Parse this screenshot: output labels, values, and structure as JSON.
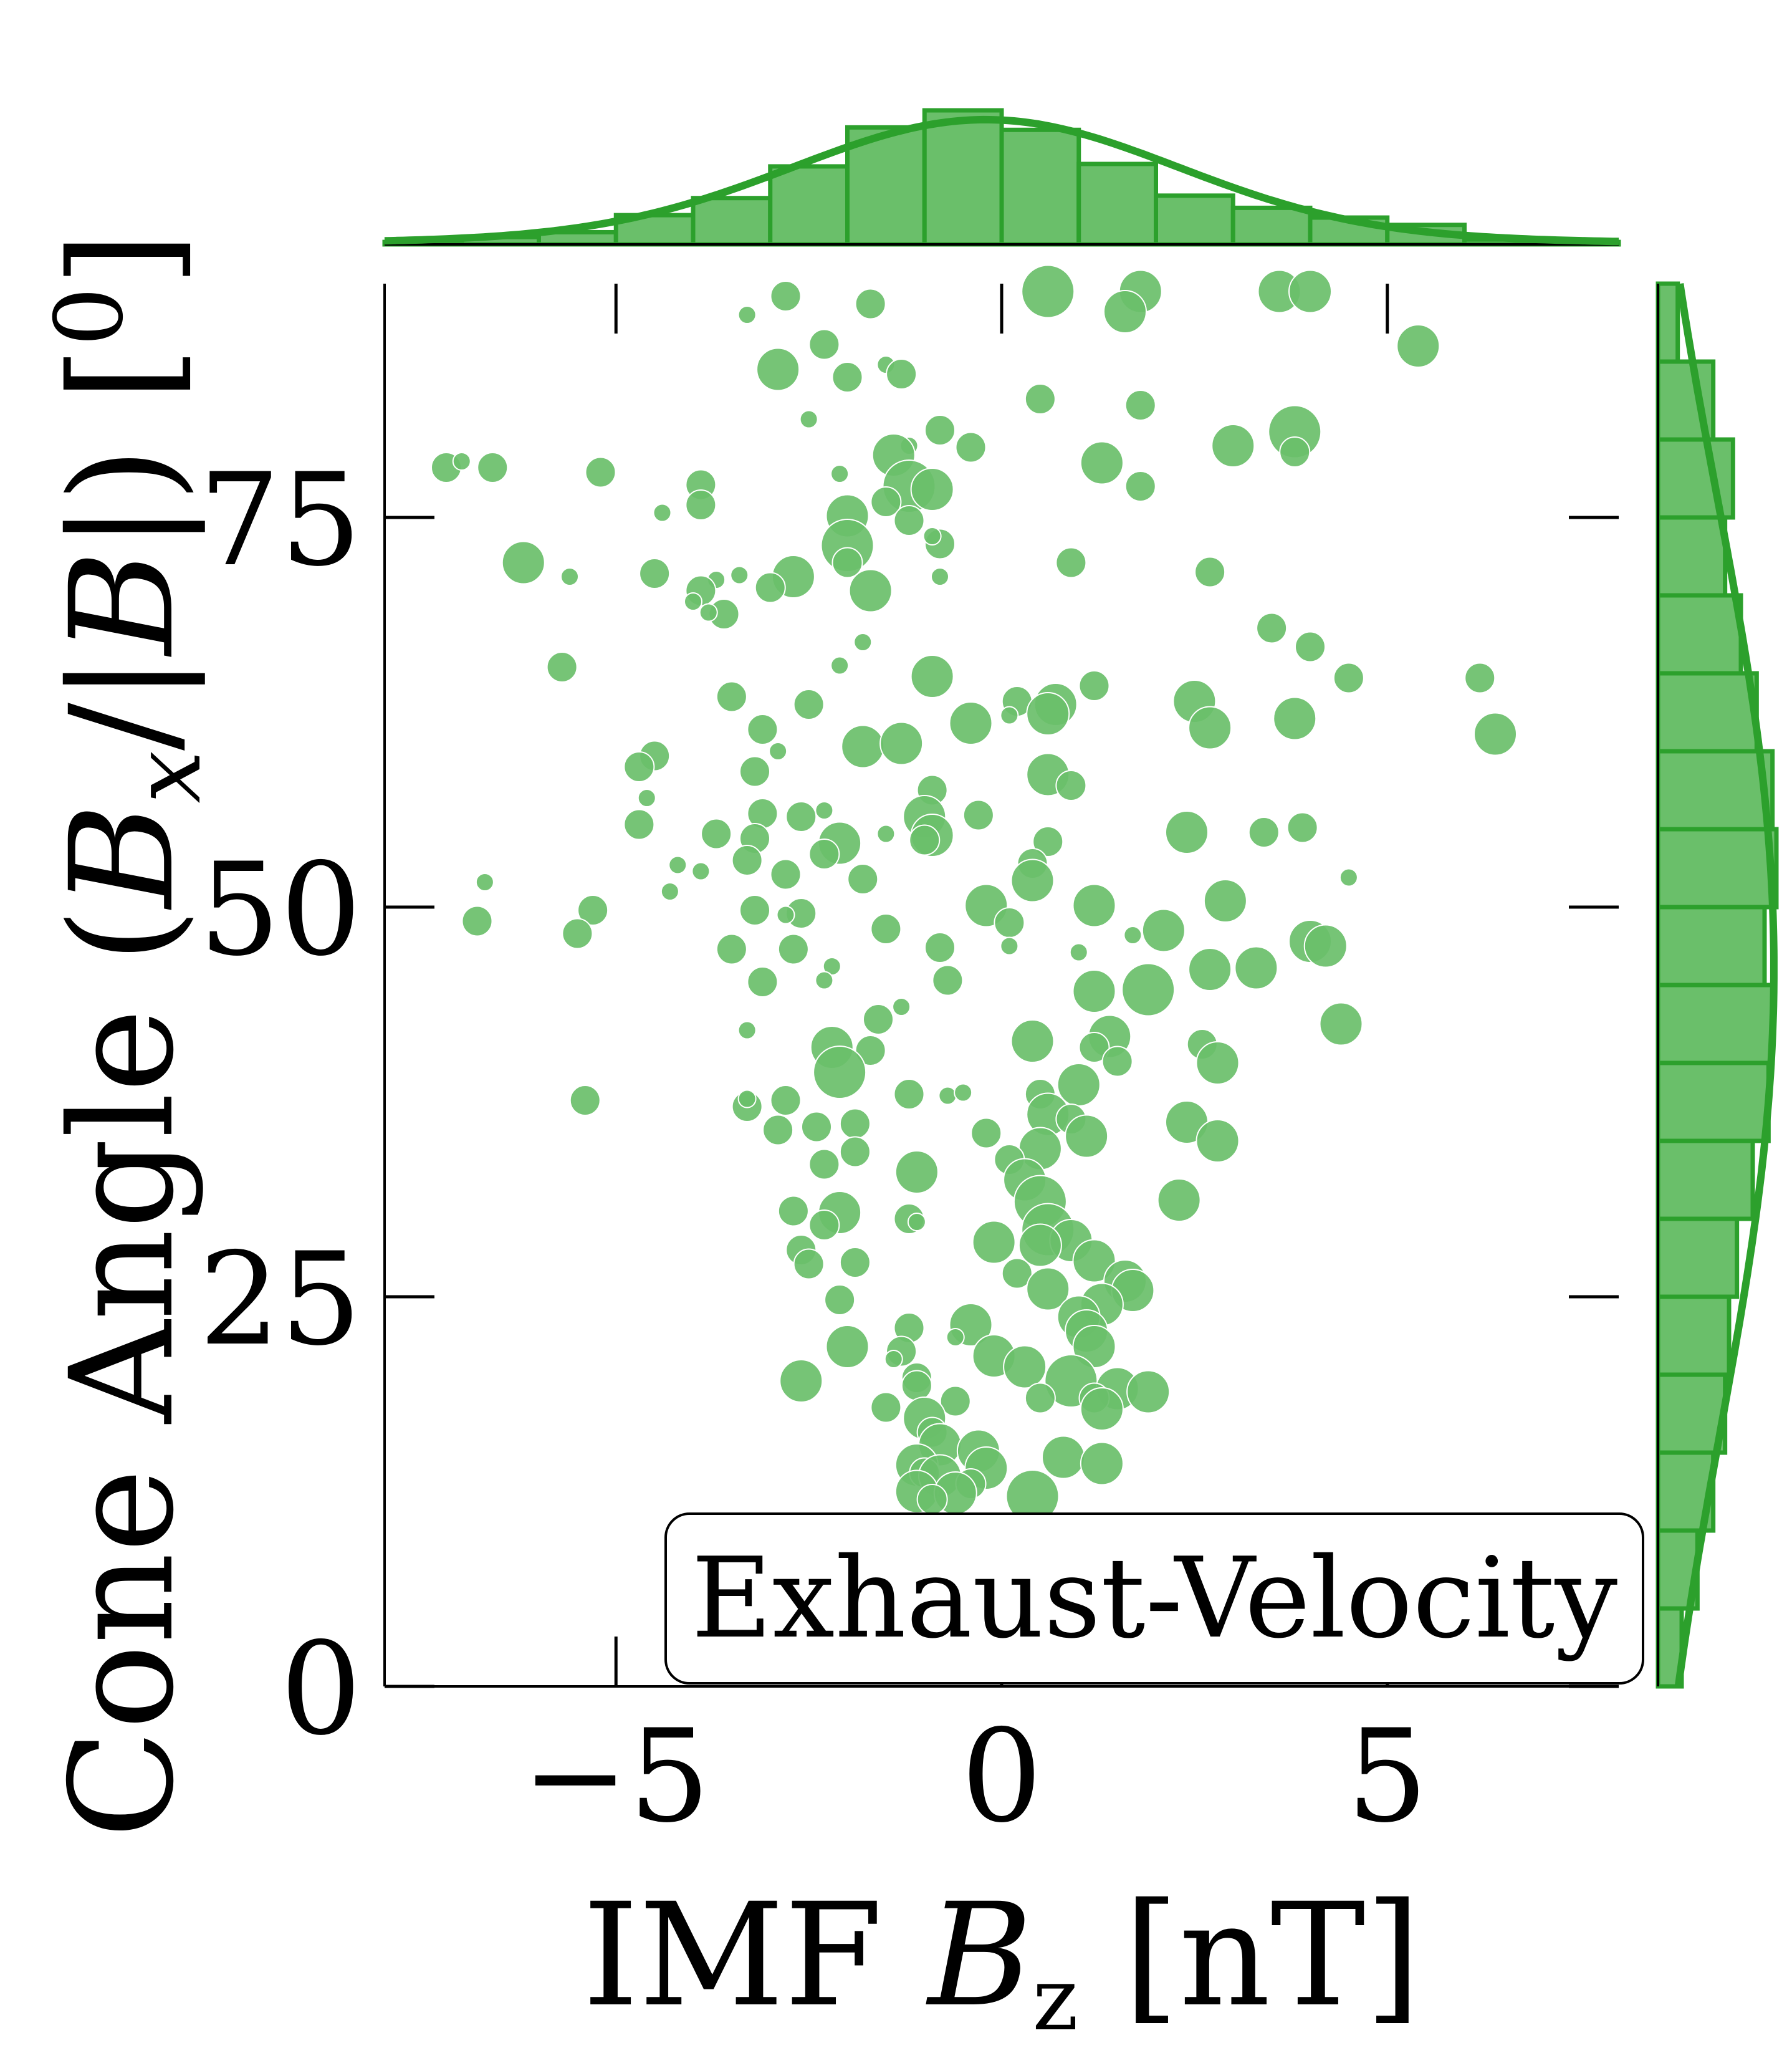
{
  "chart_data": {
    "type": "scatter",
    "series_color": "#2ca02c",
    "marker_fill": "#6abf6a",
    "xlabel": "IMF B_z [nT]",
    "ylabel": "Cone Angle (B_x/|B|) [°]",
    "xlabel_parts": {
      "main": "IMF ",
      "symbol": "B",
      "sub": "z",
      "unit": " [nT]"
    },
    "ylabel_parts": {
      "main": "Cone Angle (",
      "symbol": "B",
      "sub": "x",
      "middle": "/|",
      "symbol2": "B",
      "end": "|) [",
      "degree": "0",
      "close": "]"
    },
    "xlim": [
      -8,
      8
    ],
    "ylim": [
      0,
      90
    ],
    "x_ticks": [
      -5,
      0,
      5
    ],
    "x_tick_labels": [
      "−5",
      "0",
      "5"
    ],
    "y_ticks": [
      0,
      25,
      50,
      75
    ],
    "y_tick_labels": [
      "0",
      "25",
      "50",
      "75"
    ],
    "legend": {
      "text": "Exhaust-Velocity",
      "placement": "lower-right"
    },
    "points": [
      {
        "x": 0.6,
        "y": 89.5,
        "s": 3
      },
      {
        "x": 1.8,
        "y": 89.5,
        "s": 2
      },
      {
        "x": 3.6,
        "y": 89.5,
        "s": 2
      },
      {
        "x": 4.0,
        "y": 89.5,
        "s": 2
      },
      {
        "x": -2.8,
        "y": 89.2,
        "s": 1
      },
      {
        "x": -1.7,
        "y": 88.7,
        "s": 1
      },
      {
        "x": 1.6,
        "y": 88.2,
        "s": 2
      },
      {
        "x": -3.3,
        "y": 88.0,
        "s": 0
      },
      {
        "x": 5.4,
        "y": 86.0,
        "s": 2
      },
      {
        "x": -2.3,
        "y": 86.1,
        "s": 1
      },
      {
        "x": -2.9,
        "y": 84.5,
        "s": 2
      },
      {
        "x": -2.0,
        "y": 84.0,
        "s": 1
      },
      {
        "x": -1.5,
        "y": 84.8,
        "s": 0
      },
      {
        "x": -1.3,
        "y": 84.2,
        "s": 1
      },
      {
        "x": 0.5,
        "y": 82.6,
        "s": 1
      },
      {
        "x": 1.8,
        "y": 82.2,
        "s": 1
      },
      {
        "x": -2.5,
        "y": 81.3,
        "s": 0
      },
      {
        "x": -1.2,
        "y": 79.6,
        "s": 0
      },
      {
        "x": -0.8,
        "y": 80.6,
        "s": 1
      },
      {
        "x": 3.8,
        "y": 80.5,
        "s": 3
      },
      {
        "x": 3.0,
        "y": 79.6,
        "s": 2
      },
      {
        "x": -0.4,
        "y": 79.5,
        "s": 1
      },
      {
        "x": -1.4,
        "y": 79.0,
        "s": 2
      },
      {
        "x": 3.8,
        "y": 79.2,
        "s": 1
      },
      {
        "x": -7.2,
        "y": 78.2,
        "s": 1
      },
      {
        "x": -6.6,
        "y": 78.2,
        "s": 1
      },
      {
        "x": 1.3,
        "y": 78.5,
        "s": 2
      },
      {
        "x": -7.0,
        "y": 78.6,
        "s": 0
      },
      {
        "x": -5.2,
        "y": 77.9,
        "s": 1
      },
      {
        "x": -2.1,
        "y": 77.8,
        "s": 0
      },
      {
        "x": -3.9,
        "y": 77.1,
        "s": 1
      },
      {
        "x": -1.2,
        "y": 77.0,
        "s": 3
      },
      {
        "x": -0.9,
        "y": 76.8,
        "s": 2
      },
      {
        "x": -1.5,
        "y": 76.0,
        "s": 1
      },
      {
        "x": 1.8,
        "y": 77.0,
        "s": 1
      },
      {
        "x": -3.9,
        "y": 75.8,
        "s": 1
      },
      {
        "x": -4.4,
        "y": 75.3,
        "s": 0
      },
      {
        "x": -2.0,
        "y": 75.1,
        "s": 2
      },
      {
        "x": -1.2,
        "y": 74.8,
        "s": 1
      },
      {
        "x": -2.0,
        "y": 73.2,
        "s": 3
      },
      {
        "x": -0.8,
        "y": 73.3,
        "s": 1
      },
      {
        "x": -0.9,
        "y": 73.8,
        "s": 0
      },
      {
        "x": -6.2,
        "y": 72.1,
        "s": 2
      },
      {
        "x": 0.9,
        "y": 72.1,
        "s": 1
      },
      {
        "x": -2.0,
        "y": 72.1,
        "s": 1
      },
      {
        "x": -4.5,
        "y": 71.4,
        "s": 1
      },
      {
        "x": -5.6,
        "y": 71.2,
        "s": 0
      },
      {
        "x": -0.8,
        "y": 71.2,
        "s": 0
      },
      {
        "x": -3.7,
        "y": 71.0,
        "s": 0
      },
      {
        "x": -3.4,
        "y": 71.3,
        "s": 0
      },
      {
        "x": -2.7,
        "y": 71.2,
        "s": 2
      },
      {
        "x": 2.7,
        "y": 71.5,
        "s": 1
      },
      {
        "x": -3.9,
        "y": 70.3,
        "s": 1
      },
      {
        "x": -3.0,
        "y": 70.5,
        "s": 1
      },
      {
        "x": -1.7,
        "y": 70.3,
        "s": 2
      },
      {
        "x": -4.0,
        "y": 69.6,
        "s": 0
      },
      {
        "x": -3.6,
        "y": 68.8,
        "s": 1
      },
      {
        "x": -3.8,
        "y": 68.9,
        "s": 0
      },
      {
        "x": 3.5,
        "y": 67.9,
        "s": 1
      },
      {
        "x": 4.0,
        "y": 66.7,
        "s": 1
      },
      {
        "x": -1.8,
        "y": 67.0,
        "s": 0
      },
      {
        "x": -2.1,
        "y": 65.5,
        "s": 0
      },
      {
        "x": -5.7,
        "y": 65.4,
        "s": 1
      },
      {
        "x": -0.9,
        "y": 64.8,
        "s": 2
      },
      {
        "x": 4.5,
        "y": 64.7,
        "s": 1
      },
      {
        "x": 6.2,
        "y": 64.7,
        "s": 1
      },
      {
        "x": 1.2,
        "y": 64.2,
        "s": 1
      },
      {
        "x": -3.5,
        "y": 63.5,
        "s": 1
      },
      {
        "x": -2.5,
        "y": 63.0,
        "s": 1
      },
      {
        "x": 0.2,
        "y": 63.2,
        "s": 1
      },
      {
        "x": 0.7,
        "y": 63.0,
        "s": 2
      },
      {
        "x": 2.5,
        "y": 63.2,
        "s": 2
      },
      {
        "x": 0.6,
        "y": 62.4,
        "s": 2
      },
      {
        "x": 2.7,
        "y": 61.5,
        "s": 2
      },
      {
        "x": 3.8,
        "y": 62.1,
        "s": 2
      },
      {
        "x": -0.4,
        "y": 61.8,
        "s": 2
      },
      {
        "x": 0.1,
        "y": 62.3,
        "s": 0
      },
      {
        "x": -3.1,
        "y": 61.4,
        "s": 1
      },
      {
        "x": -2.9,
        "y": 60.0,
        "s": 0
      },
      {
        "x": -1.8,
        "y": 60.3,
        "s": 2
      },
      {
        "x": -1.3,
        "y": 60.5,
        "s": 2
      },
      {
        "x": 6.4,
        "y": 61.1,
        "s": 2
      },
      {
        "x": -4.5,
        "y": 59.7,
        "s": 1
      },
      {
        "x": -3.2,
        "y": 58.7,
        "s": 1
      },
      {
        "x": -4.7,
        "y": 59.0,
        "s": 1
      },
      {
        "x": 0.6,
        "y": 58.5,
        "s": 2
      },
      {
        "x": 0.9,
        "y": 57.8,
        "s": 1
      },
      {
        "x": -0.9,
        "y": 57.5,
        "s": 1
      },
      {
        "x": -4.6,
        "y": 57.0,
        "s": 0
      },
      {
        "x": -3.1,
        "y": 56.0,
        "s": 1
      },
      {
        "x": -2.6,
        "y": 55.8,
        "s": 1
      },
      {
        "x": -2.3,
        "y": 56.2,
        "s": 0
      },
      {
        "x": -1.0,
        "y": 55.8,
        "s": 2
      },
      {
        "x": -0.3,
        "y": 55.9,
        "s": 1
      },
      {
        "x": -4.7,
        "y": 55.3,
        "s": 1
      },
      {
        "x": -0.9,
        "y": 54.6,
        "s": 2
      },
      {
        "x": -1.0,
        "y": 54.3,
        "s": 1
      },
      {
        "x": -3.2,
        "y": 54.4,
        "s": 1
      },
      {
        "x": -2.1,
        "y": 54.1,
        "s": 2
      },
      {
        "x": -1.5,
        "y": 54.7,
        "s": 0
      },
      {
        "x": -3.7,
        "y": 54.7,
        "s": 1
      },
      {
        "x": 0.6,
        "y": 54.2,
        "s": 1
      },
      {
        "x": 2.4,
        "y": 54.8,
        "s": 2
      },
      {
        "x": 3.4,
        "y": 54.8,
        "s": 1
      },
      {
        "x": 3.9,
        "y": 55.1,
        "s": 1
      },
      {
        "x": -2.3,
        "y": 53.4,
        "s": 1
      },
      {
        "x": -3.3,
        "y": 53.0,
        "s": 1
      },
      {
        "x": 0.4,
        "y": 52.8,
        "s": 1
      },
      {
        "x": -4.2,
        "y": 52.7,
        "s": 0
      },
      {
        "x": -3.9,
        "y": 52.3,
        "s": 0
      },
      {
        "x": -2.8,
        "y": 52.1,
        "s": 1
      },
      {
        "x": -1.8,
        "y": 51.8,
        "s": 1
      },
      {
        "x": 0.4,
        "y": 51.7,
        "s": 2
      },
      {
        "x": -6.7,
        "y": 51.6,
        "s": 0
      },
      {
        "x": 4.5,
        "y": 51.9,
        "s": 0
      },
      {
        "x": -4.3,
        "y": 51.0,
        "s": 0
      },
      {
        "x": 2.9,
        "y": 50.4,
        "s": 2
      },
      {
        "x": -0.2,
        "y": 50.1,
        "s": 2
      },
      {
        "x": 1.2,
        "y": 50.1,
        "s": 2
      },
      {
        "x": -5.3,
        "y": 49.8,
        "s": 1
      },
      {
        "x": -3.2,
        "y": 49.8,
        "s": 1
      },
      {
        "x": -2.6,
        "y": 49.6,
        "s": 1
      },
      {
        "x": -2.8,
        "y": 49.5,
        "s": 0
      },
      {
        "x": 0.1,
        "y": 49.0,
        "s": 1
      },
      {
        "x": -1.5,
        "y": 48.6,
        "s": 1
      },
      {
        "x": 2.1,
        "y": 48.5,
        "s": 2
      },
      {
        "x": -6.8,
        "y": 49.1,
        "s": 1
      },
      {
        "x": -5.5,
        "y": 48.3,
        "s": 1
      },
      {
        "x": 1.7,
        "y": 48.2,
        "s": 0
      },
      {
        "x": 4.0,
        "y": 47.8,
        "s": 2
      },
      {
        "x": -2.7,
        "y": 47.3,
        "s": 1
      },
      {
        "x": -3.5,
        "y": 47.3,
        "s": 1
      },
      {
        "x": -0.8,
        "y": 47.4,
        "s": 1
      },
      {
        "x": 0.1,
        "y": 47.5,
        "s": 0
      },
      {
        "x": 1.0,
        "y": 47.1,
        "s": 0
      },
      {
        "x": 4.2,
        "y": 47.5,
        "s": 2
      },
      {
        "x": 2.7,
        "y": 46.0,
        "s": 2
      },
      {
        "x": 3.3,
        "y": 46.1,
        "s": 2
      },
      {
        "x": -2.2,
        "y": 46.2,
        "s": 0
      },
      {
        "x": -3.1,
        "y": 45.2,
        "s": 1
      },
      {
        "x": -2.3,
        "y": 45.3,
        "s": 0
      },
      {
        "x": -0.7,
        "y": 45.3,
        "s": 1
      },
      {
        "x": 1.2,
        "y": 44.6,
        "s": 2
      },
      {
        "x": 1.9,
        "y": 44.7,
        "s": 3
      },
      {
        "x": -1.3,
        "y": 43.6,
        "s": 0
      },
      {
        "x": 4.4,
        "y": 42.5,
        "s": 2
      },
      {
        "x": -1.6,
        "y": 42.8,
        "s": 1
      },
      {
        "x": -3.3,
        "y": 42.1,
        "s": 0
      },
      {
        "x": 0.4,
        "y": 41.4,
        "s": 2
      },
      {
        "x": 1.4,
        "y": 41.7,
        "s": 2
      },
      {
        "x": 1.2,
        "y": 41.0,
        "s": 1
      },
      {
        "x": 2.6,
        "y": 41.2,
        "s": 1
      },
      {
        "x": -2.2,
        "y": 41.0,
        "s": 2
      },
      {
        "x": -1.7,
        "y": 40.8,
        "s": 1
      },
      {
        "x": 2.8,
        "y": 40.0,
        "s": 2
      },
      {
        "x": -2.1,
        "y": 39.4,
        "s": 3
      },
      {
        "x": 1.5,
        "y": 40.1,
        "s": 1
      },
      {
        "x": 1.0,
        "y": 38.6,
        "s": 2
      },
      {
        "x": 0.5,
        "y": 38.0,
        "s": 1
      },
      {
        "x": -1.2,
        "y": 38.0,
        "s": 1
      },
      {
        "x": -0.7,
        "y": 37.9,
        "s": 0
      },
      {
        "x": -0.5,
        "y": 38.1,
        "s": 0
      },
      {
        "x": -5.4,
        "y": 37.6,
        "s": 1
      },
      {
        "x": -3.3,
        "y": 37.2,
        "s": 1
      },
      {
        "x": -2.8,
        "y": 37.6,
        "s": 1
      },
      {
        "x": -3.3,
        "y": 37.7,
        "s": 0
      },
      {
        "x": -1.9,
        "y": 36.1,
        "s": 1
      },
      {
        "x": 0.6,
        "y": 36.7,
        "s": 2
      },
      {
        "x": 0.9,
        "y": 36.4,
        "s": 1
      },
      {
        "x": 2.4,
        "y": 36.2,
        "s": 2
      },
      {
        "x": -2.4,
        "y": 35.9,
        "s": 1
      },
      {
        "x": -2.9,
        "y": 35.7,
        "s": 1
      },
      {
        "x": -0.2,
        "y": 35.5,
        "s": 1
      },
      {
        "x": 1.1,
        "y": 35.3,
        "s": 2
      },
      {
        "x": 2.8,
        "y": 35.0,
        "s": 2
      },
      {
        "x": 0.5,
        "y": 34.5,
        "s": 2
      },
      {
        "x": -1.9,
        "y": 34.3,
        "s": 1
      },
      {
        "x": -2.3,
        "y": 33.5,
        "s": 1
      },
      {
        "x": 0.1,
        "y": 33.8,
        "s": 1
      },
      {
        "x": -1.1,
        "y": 33.0,
        "s": 2
      },
      {
        "x": 0.3,
        "y": 32.5,
        "s": 2
      },
      {
        "x": 0.5,
        "y": 31.1,
        "s": 3
      },
      {
        "x": 2.3,
        "y": 31.2,
        "s": 2
      },
      {
        "x": -2.1,
        "y": 30.4,
        "s": 2
      },
      {
        "x": -2.7,
        "y": 30.5,
        "s": 1
      },
      {
        "x": -1.2,
        "y": 30.0,
        "s": 1
      },
      {
        "x": -1.1,
        "y": 29.8,
        "s": 0
      },
      {
        "x": -2.3,
        "y": 29.6,
        "s": 1
      },
      {
        "x": 0.6,
        "y": 29.3,
        "s": 3
      },
      {
        "x": 0.9,
        "y": 28.6,
        "s": 2
      },
      {
        "x": -0.1,
        "y": 28.5,
        "s": 2
      },
      {
        "x": 0.5,
        "y": 28.3,
        "s": 2
      },
      {
        "x": -2.6,
        "y": 28.0,
        "s": 1
      },
      {
        "x": -2.5,
        "y": 27.1,
        "s": 1
      },
      {
        "x": -1.9,
        "y": 27.2,
        "s": 1
      },
      {
        "x": 1.2,
        "y": 27.3,
        "s": 2
      },
      {
        "x": 0.2,
        "y": 26.5,
        "s": 1
      },
      {
        "x": 1.6,
        "y": 26.0,
        "s": 2
      },
      {
        "x": 1.7,
        "y": 25.4,
        "s": 2
      },
      {
        "x": 0.6,
        "y": 25.5,
        "s": 2
      },
      {
        "x": -2.1,
        "y": 24.8,
        "s": 1
      },
      {
        "x": 1.3,
        "y": 24.5,
        "s": 2
      },
      {
        "x": 1.0,
        "y": 23.7,
        "s": 2
      },
      {
        "x": -0.4,
        "y": 23.2,
        "s": 2
      },
      {
        "x": -1.2,
        "y": 23.0,
        "s": 1
      },
      {
        "x": -0.6,
        "y": 22.4,
        "s": 0
      },
      {
        "x": 1.1,
        "y": 22.8,
        "s": 2
      },
      {
        "x": 1.2,
        "y": 21.8,
        "s": 2
      },
      {
        "x": -2.0,
        "y": 21.8,
        "s": 2
      },
      {
        "x": -1.3,
        "y": 21.5,
        "s": 1
      },
      {
        "x": -1.4,
        "y": 21.0,
        "s": 0
      },
      {
        "x": -0.1,
        "y": 21.2,
        "s": 2
      },
      {
        "x": 0.3,
        "y": 20.5,
        "s": 2
      },
      {
        "x": -1.1,
        "y": 19.8,
        "s": 1
      },
      {
        "x": 0.9,
        "y": 19.6,
        "s": 3
      },
      {
        "x": -2.6,
        "y": 19.6,
        "s": 2
      },
      {
        "x": -1.1,
        "y": 19.3,
        "s": 1
      },
      {
        "x": 1.5,
        "y": 19.1,
        "s": 2
      },
      {
        "x": 1.9,
        "y": 18.9,
        "s": 2
      },
      {
        "x": 0.5,
        "y": 18.5,
        "s": 1
      },
      {
        "x": 1.2,
        "y": 18.5,
        "s": 1
      },
      {
        "x": -0.6,
        "y": 18.3,
        "s": 1
      },
      {
        "x": 1.3,
        "y": 17.8,
        "s": 2
      },
      {
        "x": -1.5,
        "y": 17.9,
        "s": 1
      },
      {
        "x": -1.0,
        "y": 17.2,
        "s": 2
      },
      {
        "x": -0.9,
        "y": 16.3,
        "s": 1
      },
      {
        "x": -0.8,
        "y": 15.5,
        "s": 2
      },
      {
        "x": -0.3,
        "y": 15.1,
        "s": 2
      },
      {
        "x": 0.8,
        "y": 14.7,
        "s": 2
      },
      {
        "x": -1.1,
        "y": 14.2,
        "s": 2
      },
      {
        "x": -0.2,
        "y": 14.0,
        "s": 2
      },
      {
        "x": 1.3,
        "y": 14.3,
        "s": 2
      },
      {
        "x": -1.0,
        "y": 13.7,
        "s": 1
      },
      {
        "x": -0.8,
        "y": 13.5,
        "s": 2
      },
      {
        "x": -0.4,
        "y": 13.0,
        "s": 1
      },
      {
        "x": -1.1,
        "y": 12.5,
        "s": 2
      },
      {
        "x": -0.6,
        "y": 12.4,
        "s": 2
      },
      {
        "x": 0.4,
        "y": 12.2,
        "s": 3
      },
      {
        "x": -0.9,
        "y": 12.0,
        "s": 1
      }
    ],
    "x_hist": {
      "bin_edges": [
        -8,
        -7,
        -6,
        -5,
        -4,
        -3,
        -2,
        -1,
        0,
        1,
        2,
        3,
        4,
        5,
        6,
        7,
        8
      ],
      "counts": [
        1,
        3,
        5,
        12,
        19,
        32,
        48,
        55,
        47,
        33,
        20,
        15,
        11,
        8,
        2,
        1
      ]
    },
    "y_hist": {
      "bin_edges": [
        0,
        5,
        10,
        15,
        20,
        25,
        30,
        35,
        40,
        45,
        50,
        55,
        60,
        65,
        70,
        75,
        80,
        85,
        90
      ],
      "counts": [
        6,
        10,
        14,
        17,
        18,
        20,
        24,
        28,
        29,
        27,
        30,
        29,
        25,
        21,
        17,
        19,
        14,
        5
      ]
    }
  }
}
